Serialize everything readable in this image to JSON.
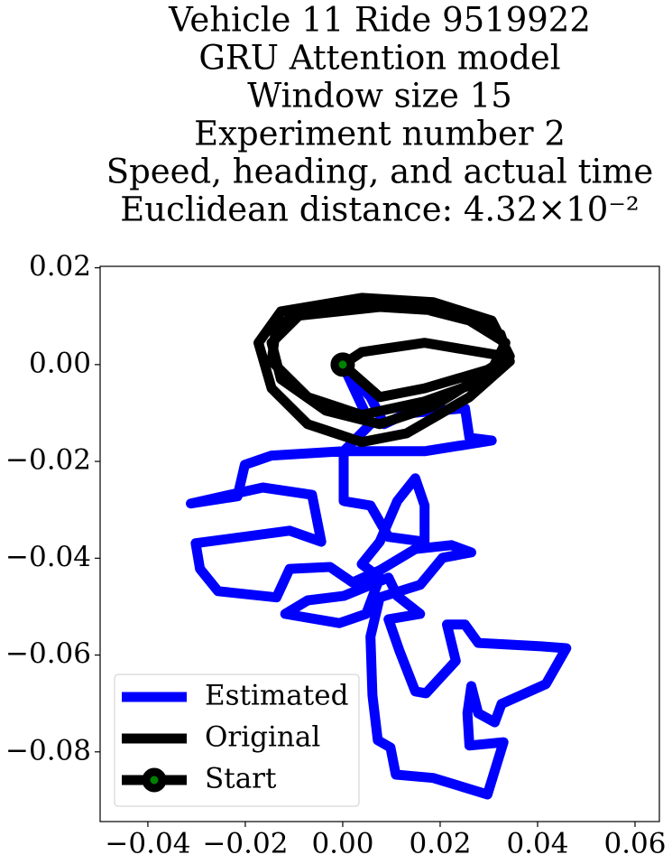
{
  "chart_data": {
    "type": "line",
    "title": [
      "Vehicle 11 Ride 9519922",
      "GRU Attention model",
      "Window size 15",
      "Experiment number 2",
      "Speed, heading, and actual time",
      "Euclidean distance: 4.32×10⁻²"
    ],
    "xlim": [
      -0.0498,
      0.065
    ],
    "ylim": [
      -0.0944,
      0.0203
    ],
    "xticks": [
      {
        "value": -0.04,
        "label": "−0.04"
      },
      {
        "value": -0.02,
        "label": "−0.02"
      },
      {
        "value": 0,
        "label": "0.00"
      },
      0.02,
      0.04,
      0.06
    ],
    "yticks": [
      {
        "value": -0.08,
        "label": "−0.08"
      },
      {
        "value": -0.06,
        "label": "−0.06"
      },
      {
        "value": -0.04,
        "label": "−0.04"
      },
      {
        "value": -0.02,
        "label": "−0.02"
      },
      {
        "value": 0,
        "label": "0.00"
      },
      0.02
    ],
    "legend": "lower left",
    "series": [
      {
        "name": "Estimated",
        "color": "#0000ff",
        "x": [
          0,
          0.0057,
          0.0085,
          0.0131,
          0.0251,
          0.026,
          0.0306,
          0.0168,
          0.0002,
          -0.0146,
          -0.0201,
          -0.0216,
          -0.0312,
          -0.0164,
          -0.0063,
          -0.0044,
          -0.0109,
          -0.0302,
          -0.0293,
          -0.0256,
          -0.0136,
          -0.0109,
          -0.0026,
          0.002,
          0.0076,
          0.0149,
          0.0223,
          0.0264,
          0.0205,
          0.0159,
          0.0076,
          0.0057,
          0.0061,
          0.0072,
          0.0098,
          0.0109,
          0.0186,
          0.0297,
          0.033,
          0.026,
          0.0256,
          0.0264,
          0.0278,
          0.0312,
          0.0326,
          0.0417,
          0.0459,
          0.0407,
          0.0278,
          0.0251,
          0.0214,
          0.0232,
          0.0171,
          0.0149,
          0.0116,
          0.0094,
          0.0159,
          0.0112,
          0.0094,
          0.0002,
          -0.0072,
          -0.0118,
          -0.0007,
          0.0048,
          0.0076,
          0.0039,
          0.0076,
          0.0112,
          0.0149,
          0.0168,
          0.0168,
          0.0094,
          0.0057,
          0.0002,
          0.0002,
          0.0057,
          0
        ],
        "y": [
          0,
          -0.0067,
          -0.0123,
          -0.0101,
          -0.009,
          -0.0151,
          -0.0157,
          -0.0179,
          -0.0179,
          -0.0188,
          -0.0207,
          -0.0272,
          -0.0287,
          -0.0254,
          -0.0269,
          -0.0366,
          -0.0343,
          -0.0369,
          -0.0422,
          -0.0468,
          -0.0481,
          -0.0422,
          -0.0418,
          -0.045,
          -0.0425,
          -0.0381,
          -0.0373,
          -0.0388,
          -0.0399,
          -0.0455,
          -0.0481,
          -0.0562,
          -0.0683,
          -0.0776,
          -0.0791,
          -0.0847,
          -0.0854,
          -0.0888,
          -0.078,
          -0.0787,
          -0.072,
          -0.0664,
          -0.072,
          -0.0739,
          -0.0701,
          -0.066,
          -0.0586,
          -0.0582,
          -0.0575,
          -0.0537,
          -0.0537,
          -0.0612,
          -0.0679,
          -0.0675,
          -0.059,
          -0.0526,
          -0.0515,
          -0.0478,
          -0.044,
          -0.0478,
          -0.0487,
          -0.0515,
          -0.0534,
          -0.0515,
          -0.044,
          -0.0412,
          -0.0366,
          -0.0282,
          -0.0235,
          -0.0291,
          -0.0366,
          -0.0356,
          -0.0291,
          -0.0282,
          -0.0179,
          -0.0123,
          0
        ]
      },
      {
        "name": "Original",
        "color": "#000000",
        "x": [
          0,
          0.0076,
          0.0168,
          0.0297,
          0.0343,
          0.0306,
          0.0186,
          0.0039,
          -0.0127,
          -0.0173,
          -0.0146,
          -0.0072,
          0.0039,
          0.0131,
          0.026,
          0.0343,
          0.0324,
          0.0223,
          0.0076,
          -0.009,
          -0.0146,
          -0.0127,
          -0.0035,
          0.0076,
          0.0186,
          0.0306,
          0.0334,
          0.026,
          0.0112,
          -0.0053,
          -0.0136,
          -0.0146,
          -0.0072,
          0.0039,
          0.0168,
          0.0297,
          0.0334,
          0.0168,
          0.0039,
          0
        ],
        "y": [
          0,
          -0.0067,
          -0.0049,
          -0.0011,
          0.0017,
          0.0091,
          0.0129,
          0.0138,
          0.011,
          0.0045,
          -0.0049,
          -0.0123,
          -0.016,
          -0.0142,
          -0.0067,
          0.0007,
          0.0063,
          0.011,
          0.0119,
          0.0101,
          0.0045,
          -0.003,
          -0.0095,
          -0.0123,
          -0.0086,
          -0.0011,
          0.0045,
          0.0091,
          0.0129,
          0.0119,
          0.0082,
          0.0007,
          -0.0067,
          -0.0104,
          -0.0076,
          -0.003,
          0.0017,
          0.0045,
          0.0026,
          0
        ]
      },
      {
        "name": "Start",
        "color": "#000000",
        "marker_color": "#008000",
        "x": [
          0
        ],
        "y": [
          0
        ]
      }
    ]
  }
}
